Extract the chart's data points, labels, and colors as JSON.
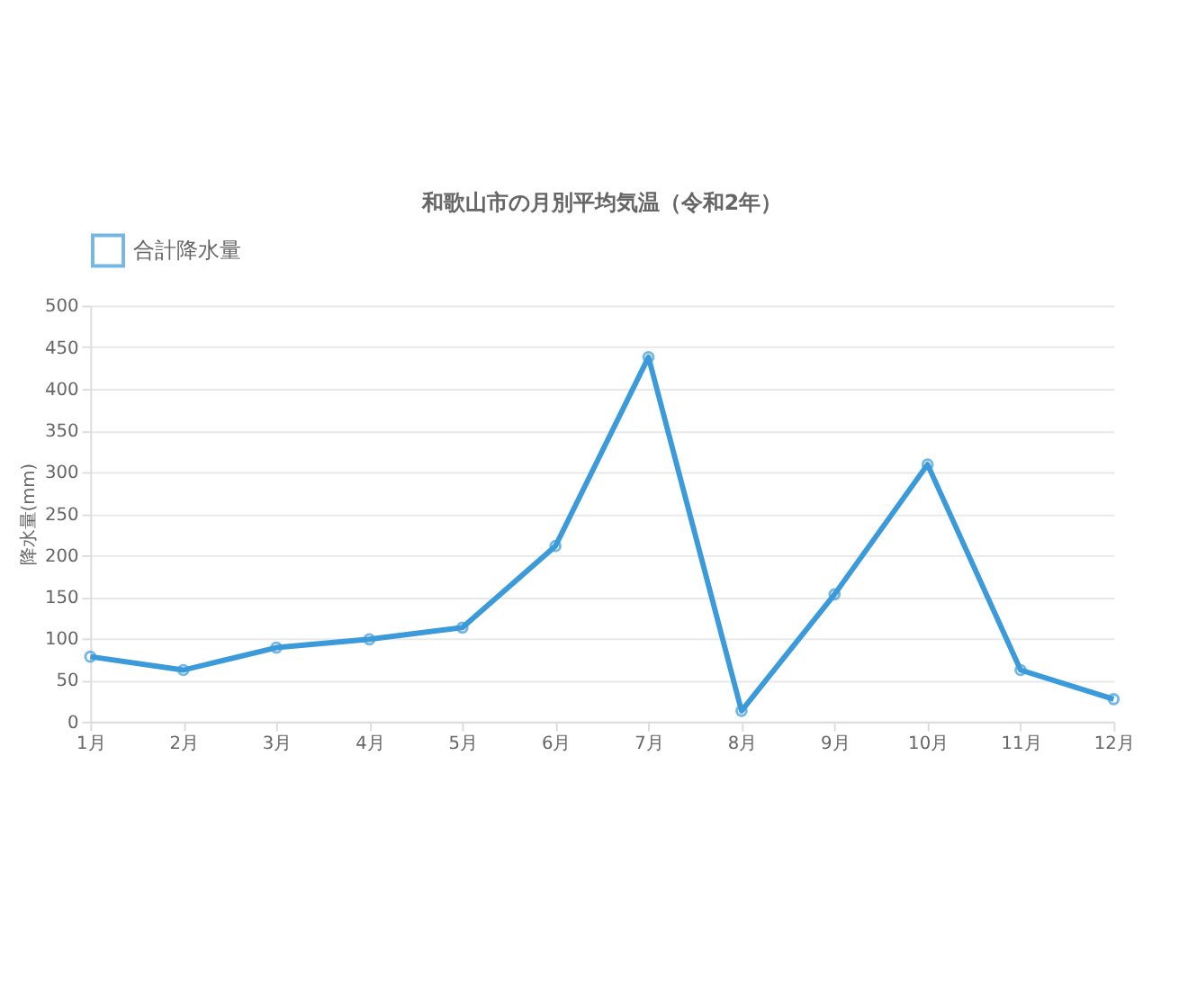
{
  "chart_data": {
    "type": "line",
    "title": "和歌山市の月別平均気温（令和2年）",
    "ylabel": "降水量(mm)",
    "categories": [
      "1月",
      "2月",
      "3月",
      "4月",
      "5月",
      "6月",
      "7月",
      "8月",
      "9月",
      "10月",
      "11月",
      "12月"
    ],
    "series": [
      {
        "name": "合計降水量",
        "color": "#3b9ad9",
        "values": [
          78,
          62,
          89,
          99,
          113,
          211,
          438,
          13,
          153,
          309,
          62,
          27
        ]
      }
    ],
    "ylim": [
      0,
      500
    ],
    "yticks": [
      0,
      50,
      100,
      150,
      200,
      250,
      300,
      350,
      400,
      450,
      500
    ],
    "grid": "y",
    "legend": "top",
    "marker": "circle",
    "line_style": "solid"
  }
}
